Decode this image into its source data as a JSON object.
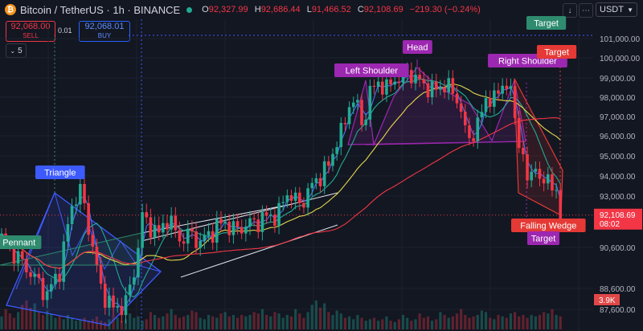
{
  "header": {
    "symbol": "Bitcoin / TetherUS · 1h · BINANCE",
    "coin_glyph": "₿",
    "o_label": "O",
    "o": "92,327.99",
    "h_label": "H",
    "h": "92,686.44",
    "l_label": "L",
    "l": "91,466.52",
    "c_label": "C",
    "c": "92,108.69",
    "change": "−219.30 (−0.24%)",
    "currency": "USDT",
    "up_color": "#22ab94",
    "down_color": "#f23645"
  },
  "trade": {
    "sell_price": "92,068.00",
    "sell_label": "SELL",
    "buy_price": "92,068.01",
    "buy_label": "BUY",
    "spread": "0.01",
    "indicators_count": "5"
  },
  "chart_data": {
    "type": "candlestick",
    "price_axis": {
      "ticks": [
        "101,000.00",
        "100,000.00",
        "99,000.00",
        "98,000.00",
        "97,000.00",
        "96,000.00",
        "95,000.00",
        "94,000.00",
        "93,000.00",
        "90,600.00",
        "88,600.00",
        "87,600.00"
      ]
    },
    "last_price": "92,108.69",
    "countdown": "08:02",
    "volume_label": "3.9K",
    "path": [
      [
        0,
        91.0
      ],
      [
        4,
        90.1
      ],
      [
        8,
        89.1
      ],
      [
        11,
        88.3
      ],
      [
        14,
        89.5
      ],
      [
        17,
        92.6
      ],
      [
        19,
        93.3
      ],
      [
        21,
        91.6
      ],
      [
        24,
        88.6
      ],
      [
        27,
        87.6
      ],
      [
        30,
        87.9
      ],
      [
        32,
        89.4
      ],
      [
        34,
        92.0
      ],
      [
        36,
        91.6
      ],
      [
        38,
        91.2
      ],
      [
        40,
        92.0
      ],
      [
        43,
        91.0
      ],
      [
        46,
        91.2
      ],
      [
        48,
        90.8
      ],
      [
        51,
        91.4
      ],
      [
        54,
        91.8
      ],
      [
        56,
        91.4
      ],
      [
        60,
        91.7
      ],
      [
        64,
        92.0
      ],
      [
        67,
        92.2
      ],
      [
        69,
        93.2
      ],
      [
        72,
        92.6
      ],
      [
        76,
        93.8
      ],
      [
        79,
        94.5
      ],
      [
        81,
        95.8
      ],
      [
        83,
        96.6
      ],
      [
        84,
        97.8
      ],
      [
        86,
        97.6
      ],
      [
        87,
        96.5
      ],
      [
        89,
        98.2
      ],
      [
        91,
        98.8
      ],
      [
        93,
        98.4
      ],
      [
        95,
        99.0
      ],
      [
        97,
        98.8
      ],
      [
        98,
        99.4
      ],
      [
        100,
        98.9
      ],
      [
        102,
        98.7
      ],
      [
        104,
        98.3
      ],
      [
        106,
        98.6
      ],
      [
        108,
        98.5
      ],
      [
        110,
        98.0
      ],
      [
        112,
        96.3
      ],
      [
        113,
        95.9
      ],
      [
        115,
        96.5
      ],
      [
        117,
        98.0
      ],
      [
        119,
        97.8
      ],
      [
        121,
        98.8
      ],
      [
        123,
        98.2
      ],
      [
        125,
        95.8
      ],
      [
        127,
        93.7
      ],
      [
        129,
        94.8
      ],
      [
        130,
        93.3
      ],
      [
        132,
        94.2
      ],
      [
        134,
        92.8
      ],
      [
        135,
        92.1
      ]
    ],
    "moving_averages": [
      {
        "color": "#4c6ef5",
        "span": 3
      },
      {
        "color": "#22ab94",
        "span": 9
      },
      {
        "color": "#e6d84b",
        "span": 21
      },
      {
        "color": "#f23645",
        "span": 60
      }
    ],
    "volumes": [
      0.45,
      0.7,
      0.55,
      0.4,
      0.6,
      0.85,
      1.0,
      0.75,
      0.9,
      0.6,
      0.5,
      0.65,
      0.55,
      0.4,
      0.45,
      0.35,
      0.5,
      0.4,
      0.3,
      0.35,
      0.4,
      0.3,
      0.35,
      0.45,
      0.3,
      0.25,
      0.35,
      0.5,
      0.4,
      0.3,
      0.35,
      0.55,
      0.4,
      0.45,
      0.3,
      0.35,
      0.6,
      0.5,
      0.4,
      0.45,
      0.55,
      0.7,
      0.5,
      0.4,
      0.45,
      0.5,
      0.65,
      0.6,
      0.4,
      0.35,
      0.5,
      0.45,
      0.4,
      0.55,
      0.6,
      0.45,
      0.5,
      0.4,
      0.5,
      0.45,
      0.5,
      0.6,
      0.55,
      0.7,
      0.5,
      0.45,
      0.6,
      0.55,
      0.4,
      0.5
    ],
    "patterns": {
      "triangle": "Triangle",
      "pennant": "Pennant",
      "head": "Head",
      "left_shoulder": "Left Shoulder",
      "right_shoulder": "Right Shoulder",
      "target_top": "Target",
      "target_right": "Target",
      "falling_wedge": "Falling Wedge",
      "target_bottom": "Target"
    },
    "pattern_colors": {
      "blue": "#3d5afe",
      "green": "#2e8b6e",
      "purple": "#9c27b0",
      "red": "#e53935"
    }
  }
}
